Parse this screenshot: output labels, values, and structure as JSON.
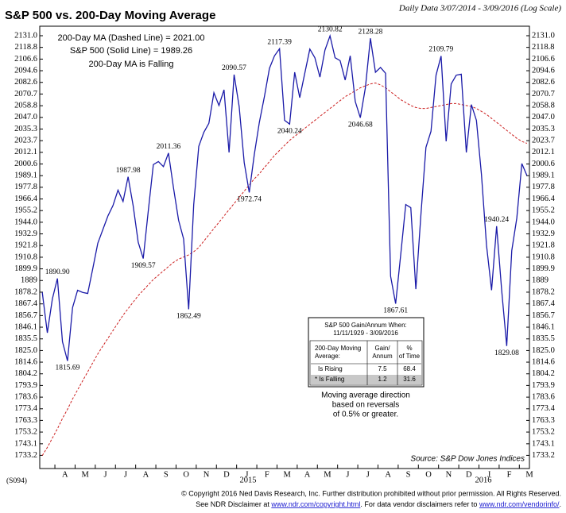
{
  "chart_data": {
    "type": "line",
    "title": "S&P 500 vs. 200-Day Moving Average",
    "subtitle": "Daily Data 3/07/2014 - 3/09/2016 (Log Scale)",
    "log_scale": true,
    "grid": false,
    "categories": [
      null,
      null,
      null,
      "A",
      null,
      null,
      null,
      "M",
      null,
      null,
      null,
      "J",
      null,
      null,
      null,
      "J",
      null,
      null,
      null,
      "A",
      null,
      null,
      null,
      "S",
      null,
      null,
      null,
      "O",
      null,
      null,
      null,
      "N",
      null,
      null,
      null,
      "D",
      null,
      null,
      null,
      "J",
      null,
      null,
      null,
      "F",
      null,
      null,
      null,
      "M",
      null,
      null,
      null,
      "A",
      null,
      null,
      null,
      "M",
      null,
      null,
      null,
      "J",
      null,
      null,
      null,
      "J",
      null,
      null,
      null,
      "A",
      null,
      null,
      null,
      "S",
      null,
      null,
      null,
      "O",
      null,
      null,
      null,
      "N",
      null,
      null,
      null,
      "D",
      null,
      null,
      null,
      "J",
      null,
      null,
      null,
      "F",
      null,
      null,
      null,
      "M",
      null
    ],
    "year_labels": [
      "2015",
      "2016"
    ],
    "series": [
      {
        "name": "S&P 500 (Solid Line) = 1989.26",
        "color": "#1a1aa8",
        "dashed": false,
        "values": [
          1878,
          1841,
          1872,
          1890.9,
          1833,
          1815.69,
          1864,
          1880,
          1878,
          1877,
          1900,
          1924,
          1937,
          1950,
          1960,
          1975,
          1964,
          1987.98,
          1960,
          1925,
          1909.57,
          1955,
          2000,
          2003,
          1998,
          2011.36,
          1977,
          1946,
          1928,
          1862.49,
          1961,
          2018,
          2032,
          2041,
          2072,
          2059,
          2075,
          2012,
          2090.57,
          2058,
          2002,
          1972.74,
          2010,
          2042,
          2068,
          2097,
          2110,
          2117.39,
          2044,
          2040.24,
          2093,
          2067,
          2092,
          2117,
          2108,
          2088,
          2116,
          2130.82,
          2108,
          2105,
          2085,
          2110,
          2063,
          2046.68,
          2077,
          2128.28,
          2093,
          2098,
          2092,
          1893,
          1867.61,
          1913,
          1961,
          1958,
          1881,
          1951,
          2017,
          2033,
          2090,
          2109.79,
          2023,
          2081,
          2090,
          2091,
          2012,
          2060,
          2044,
          1990,
          1922,
          1880,
          1940.24,
          1880,
          1829.08,
          1917,
          1948,
          2001,
          1989.26
        ],
        "value_labels": [
          null,
          null,
          null,
          "1890.90",
          null,
          "1815.69",
          null,
          null,
          null,
          null,
          null,
          null,
          null,
          null,
          null,
          null,
          null,
          "1987.98",
          null,
          null,
          "1909.57",
          null,
          null,
          null,
          null,
          "2011.36",
          null,
          null,
          null,
          "1862.49",
          null,
          null,
          null,
          null,
          null,
          null,
          null,
          null,
          "2090.57",
          null,
          null,
          "1972.74",
          null,
          null,
          null,
          null,
          null,
          "2117.39",
          null,
          "2040.24",
          null,
          null,
          null,
          null,
          null,
          null,
          null,
          "2130.82",
          null,
          null,
          null,
          null,
          null,
          "2046.68",
          null,
          "2128.28",
          null,
          null,
          null,
          null,
          "1867.61",
          null,
          null,
          null,
          null,
          null,
          null,
          null,
          null,
          "2109.79",
          null,
          null,
          null,
          null,
          null,
          null,
          null,
          null,
          null,
          null,
          "1940.24",
          null,
          "1829.08",
          null,
          null,
          null,
          null
        ]
      },
      {
        "name": "200-Day MA (Dashed Line) = 2021.00",
        "color": "#cc1f1f",
        "dashed": true,
        "values": [
          1733,
          1740,
          1748,
          1756,
          1765,
          1773,
          1782,
          1790,
          1798,
          1806,
          1814,
          1822,
          1829,
          1836,
          1843,
          1850,
          1857,
          1863,
          1869,
          1875,
          1880,
          1885,
          1890,
          1894,
          1898,
          1902,
          1906,
          1909,
          1911,
          1913,
          1916,
          1920,
          1926,
          1932,
          1938,
          1944,
          1950,
          1956,
          1962,
          1968,
          1974,
          1980,
          1986,
          1991,
          1997,
          2003,
          2009,
          2014,
          2019,
          2024,
          2028,
          2032,
          2036,
          2040,
          2044,
          2048,
          2052,
          2056,
          2060,
          2064,
          2068,
          2071,
          2074,
          2077,
          2079,
          2081,
          2082,
          2080,
          2077,
          2073,
          2069,
          2065,
          2062,
          2059,
          2057,
          2056,
          2056,
          2057,
          2058,
          2059,
          2060,
          2061,
          2061,
          2060,
          2059,
          2058,
          2056,
          2053,
          2050,
          2046,
          2042,
          2038,
          2034,
          2030,
          2026,
          2023,
          2021
        ]
      }
    ],
    "annotation": "200-Day MA is Falling",
    "ylim": [
      1722,
      2141
    ],
    "yticks": [
      1733.2,
      1743.1,
      1753.2,
      1763.3,
      1773.4,
      1783.6,
      1793.9,
      1804.2,
      1814.6,
      {
        "value": 1825,
        "label": "1825.0"
      },
      1835.5,
      1846.1,
      1856.7,
      1867.4,
      1878.2,
      1889,
      1899.9,
      1910.8,
      1921.8,
      1932.9,
      {
        "value": 1944,
        "label": "1944.0"
      },
      1955.2,
      1966.4,
      1977.8,
      1989.1,
      2000.6,
      2012.1,
      2023.7,
      2035.3,
      {
        "value": 2047,
        "label": "2047.0"
      },
      2058.8,
      2070.7,
      2082.6,
      2094.6,
      2106.6,
      2118.8,
      {
        "value": 2131,
        "label": "2131.0"
      }
    ],
    "table": {
      "title": [
        "S&P 500 Gain/Annum When:",
        "11/11/1929 - 3/09/2016"
      ],
      "header": [
        [
          "200-Day Moving",
          "Average:"
        ],
        [
          "Gain/",
          "Annum"
        ],
        [
          "%",
          "of Time"
        ]
      ],
      "rows": [
        [
          "Is Rising",
          7.5,
          68.4
        ],
        [
          "* Is Falling",
          1.2,
          31.6
        ]
      ]
    },
    "note": [
      "Moving average direction",
      "based on reversals",
      "of 0.5% or greater."
    ],
    "source": "Source: S&P Dow Jones Indices"
  },
  "footer": {
    "code": "(S094)",
    "line1": "© Copyright 2016 Ned Davis Research, Inc.  Further distribution prohibited without prior permission.  All Rights Reserved.",
    "line2": [
      "See NDR Disclaimer at ",
      "www.ndr.com/copyright.html",
      ".  For data vendor disclaimers refer to ",
      "www.ndr.com/vendorinfo/",
      "."
    ]
  }
}
